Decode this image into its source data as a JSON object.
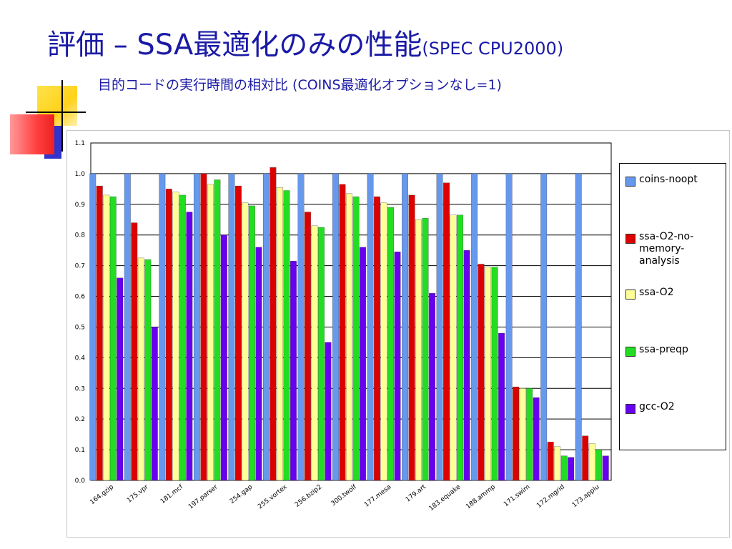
{
  "slide": {
    "title_main": "評価 – SSA最適化のみの性能",
    "title_suffix": "(SPEC CPU2000)",
    "subtitle": "目的コードの実行時間の相対比 (COINS最適化オプションなし=1)"
  },
  "colors": {
    "title": "#1a1aa6",
    "deco_yellow": "#ffd21a",
    "deco_red": "#ff4040",
    "deco_blue": "#3333cc"
  },
  "chart_data": {
    "type": "bar",
    "title": "",
    "xlabel": "",
    "ylabel": "",
    "ylim": [
      0,
      1.1
    ],
    "yticks": [
      "0.0",
      "0.1",
      "0.2",
      "0.3",
      "0.4",
      "0.5",
      "0.6",
      "0.7",
      "0.8",
      "0.9",
      "1.0",
      "1.1"
    ],
    "grid": true,
    "legend_position": "right",
    "categories": [
      "164.gzip",
      "175.vpr",
      "181.mcf",
      "197.parser",
      "254.gap",
      "255.vortex",
      "256.bzip2",
      "300.twolf",
      "177.mesa",
      "179.art",
      "183.equake",
      "188.ammp",
      "171.swim",
      "172.mgrid",
      "173.applu"
    ],
    "series": [
      {
        "name": "coins-noopt",
        "color": "#6699ee",
        "values": [
          1.0,
          1.0,
          1.0,
          1.0,
          1.0,
          1.0,
          1.0,
          1.0,
          1.0,
          1.0,
          1.0,
          1.0,
          1.0,
          1.0,
          1.0
        ]
      },
      {
        "name": "ssa-O2-no-memory-analysis",
        "color": "#dd0000",
        "values": [
          0.96,
          0.84,
          0.95,
          1.0,
          0.96,
          1.02,
          0.875,
          0.965,
          0.925,
          0.93,
          0.97,
          0.705,
          0.305,
          0.125,
          0.145
        ]
      },
      {
        "name": "ssa-O2",
        "color": "#ffff99",
        "values": [
          0.93,
          0.725,
          0.94,
          0.965,
          0.905,
          0.955,
          0.83,
          0.935,
          0.905,
          0.85,
          0.865,
          0.695,
          0.3,
          0.11,
          0.12
        ]
      },
      {
        "name": "ssa-preqp",
        "color": "#22dd22",
        "values": [
          0.925,
          0.72,
          0.93,
          0.98,
          0.895,
          0.945,
          0.825,
          0.925,
          0.89,
          0.855,
          0.865,
          0.695,
          0.3,
          0.08,
          0.1
        ]
      },
      {
        "name": "gcc-O2",
        "color": "#6600ee",
        "values": [
          0.66,
          0.5,
          0.875,
          0.8,
          0.76,
          0.715,
          0.45,
          0.76,
          0.745,
          0.61,
          0.75,
          0.48,
          0.27,
          0.075,
          0.08
        ]
      }
    ]
  }
}
